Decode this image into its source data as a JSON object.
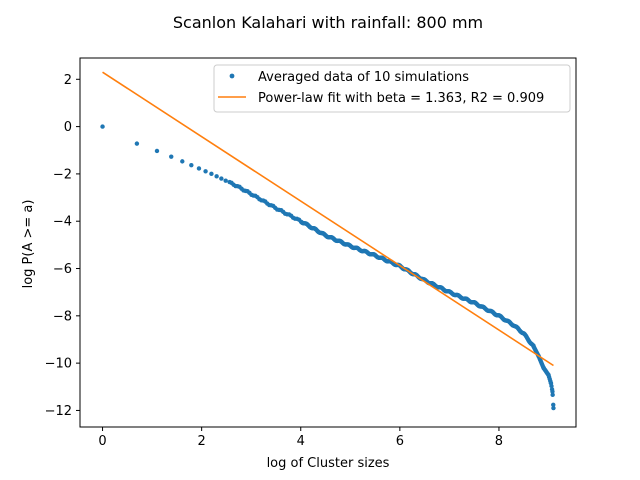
{
  "chart_data": {
    "type": "scatter",
    "title": "Scanlon Kalahari with rainfall: 800 mm",
    "xlabel": "log of Cluster sizes",
    "ylabel": "log P(A >= a)",
    "xlim": [
      -0.455,
      9.555
    ],
    "ylim": [
      -12.7,
      2.9
    ],
    "xticks": [
      0,
      2,
      4,
      6,
      8
    ],
    "yticks": [
      2,
      0,
      -2,
      -4,
      -6,
      -8,
      -10,
      -12
    ],
    "xtick_labels": [
      "0",
      "2",
      "4",
      "6",
      "8"
    ],
    "ytick_labels": [
      "2",
      "0",
      "−2",
      "−4",
      "−6",
      "−8",
      "−10",
      "−12"
    ],
    "grid": false,
    "legend_position": "top-right",
    "legend": [
      "Averaged data of 10 simulations",
      "Power-law fit with beta = 1.363, R2 = 0.909"
    ],
    "series": [
      {
        "name": "Averaged data of 10 simulations",
        "kind": "points",
        "color": "#1f77b4",
        "control_points": [
          [
            0,
            0
          ],
          [
            0.693,
            -0.72
          ],
          [
            1.099,
            -1.03
          ],
          [
            1.386,
            -1.27
          ],
          [
            1.609,
            -1.47
          ],
          [
            1.792,
            -1.63
          ],
          [
            1.946,
            -1.77
          ],
          [
            2.079,
            -1.89
          ],
          [
            2.2,
            -2.0
          ],
          [
            2.4,
            -2.2
          ],
          [
            2.7,
            -2.5
          ],
          [
            3.0,
            -2.85
          ],
          [
            3.5,
            -3.45
          ],
          [
            4.0,
            -4.0
          ],
          [
            4.5,
            -4.6
          ],
          [
            5.0,
            -5.05
          ],
          [
            5.5,
            -5.45
          ],
          [
            6.0,
            -5.9
          ],
          [
            6.5,
            -6.5
          ],
          [
            7.0,
            -7.0
          ],
          [
            7.5,
            -7.45
          ],
          [
            8.0,
            -8.0
          ],
          [
            8.3,
            -8.4
          ],
          [
            8.5,
            -8.75
          ],
          [
            8.7,
            -9.3
          ],
          [
            8.8,
            -9.7
          ],
          [
            8.9,
            -10.2
          ],
          [
            9.0,
            -10.5
          ],
          [
            9.05,
            -10.85
          ],
          [
            9.08,
            -11.2
          ],
          [
            9.1,
            -11.9
          ]
        ]
      },
      {
        "name": "Power-law fit with beta = 1.363, R2 = 0.909",
        "kind": "line",
        "color": "#ff7f0e",
        "points": [
          [
            0,
            2.3
          ],
          [
            9.1,
            -10.1
          ]
        ]
      }
    ]
  }
}
